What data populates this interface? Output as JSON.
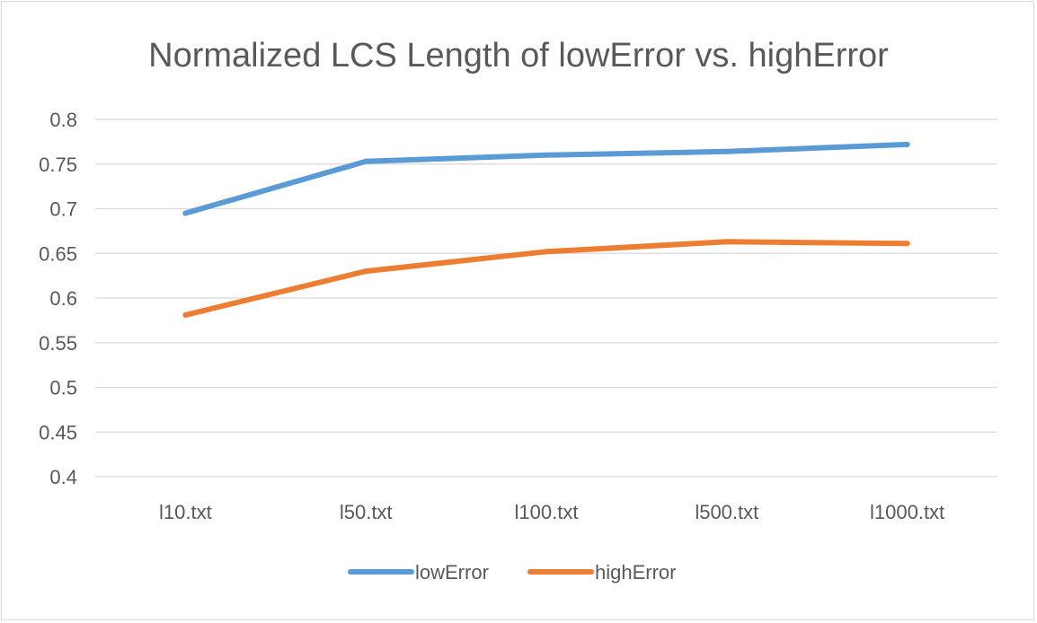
{
  "chart_data": {
    "type": "line",
    "title": "Normalized LCS Length of lowError vs. highError",
    "xlabel": "",
    "ylabel": "",
    "categories": [
      "l10.txt",
      "l50.txt",
      "l100.txt",
      "l500.txt",
      "l1000.txt"
    ],
    "ylim": [
      0.4,
      0.8
    ],
    "yticks": [
      "0.8",
      "0.75",
      "0.7",
      "0.65",
      "0.6",
      "0.55",
      "0.5",
      "0.45",
      "0.4"
    ],
    "grid": true,
    "legend_position": "bottom",
    "series": [
      {
        "name": "lowError",
        "color": "#5b9bd5",
        "values": [
          0.695,
          0.753,
          0.76,
          0.764,
          0.772
        ]
      },
      {
        "name": "highError",
        "color": "#ed7d31",
        "values": [
          0.581,
          0.63,
          0.652,
          0.663,
          0.661
        ]
      }
    ]
  }
}
